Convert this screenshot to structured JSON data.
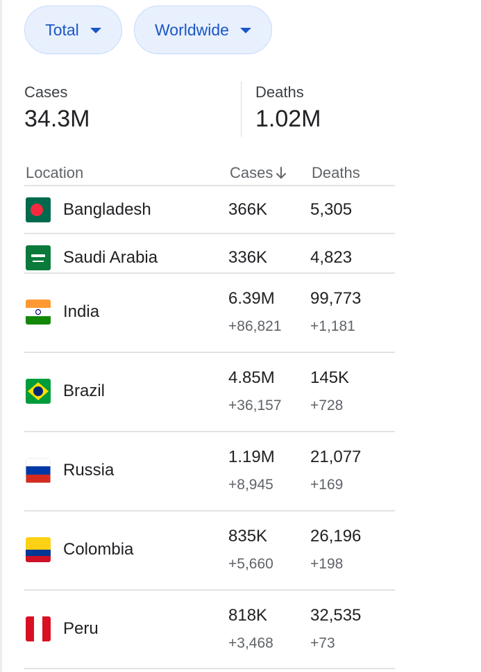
{
  "filters": {
    "metric": "Total",
    "region": "Worldwide"
  },
  "summary": {
    "cases_label": "Cases",
    "cases_value": "34.3M",
    "deaths_label": "Deaths",
    "deaths_value": "1.02M"
  },
  "table": {
    "headers": {
      "location": "Location",
      "cases": "Cases",
      "deaths": "Deaths"
    },
    "sort_icon": "arrow-down-icon",
    "rows": [
      {
        "location": "Bangladesh",
        "cases": "366K",
        "deaths": "5,305",
        "flag": "bangladesh-flag-icon"
      },
      {
        "location": "Saudi Arabia",
        "cases": "336K",
        "deaths": "4,823",
        "flag": "saudi-arabia-flag-icon"
      },
      {
        "location": "India",
        "cases": "6.39M",
        "deaths": "99,773",
        "cases_new": "+86,821",
        "deaths_new": "+1,181",
        "flag": "india-flag-icon"
      },
      {
        "location": "Brazil",
        "cases": "4.85M",
        "deaths": "145K",
        "cases_new": "+36,157",
        "deaths_new": "+728",
        "flag": "brazil-flag-icon"
      },
      {
        "location": "Russia",
        "cases": "1.19M",
        "deaths": "21,077",
        "cases_new": "+8,945",
        "deaths_new": "+169",
        "flag": "russia-flag-icon"
      },
      {
        "location": "Colombia",
        "cases": "835K",
        "deaths": "26,196",
        "cases_new": "+5,660",
        "deaths_new": "+198",
        "flag": "colombia-flag-icon"
      },
      {
        "location": "Peru",
        "cases": "818K",
        "deaths": "32,535",
        "cases_new": "+3,468",
        "deaths_new": "+73",
        "flag": "peru-flag-icon"
      }
    ]
  },
  "colors": {
    "chip_background": "#e8f0fe",
    "chip_text": "#1a56c4"
  }
}
